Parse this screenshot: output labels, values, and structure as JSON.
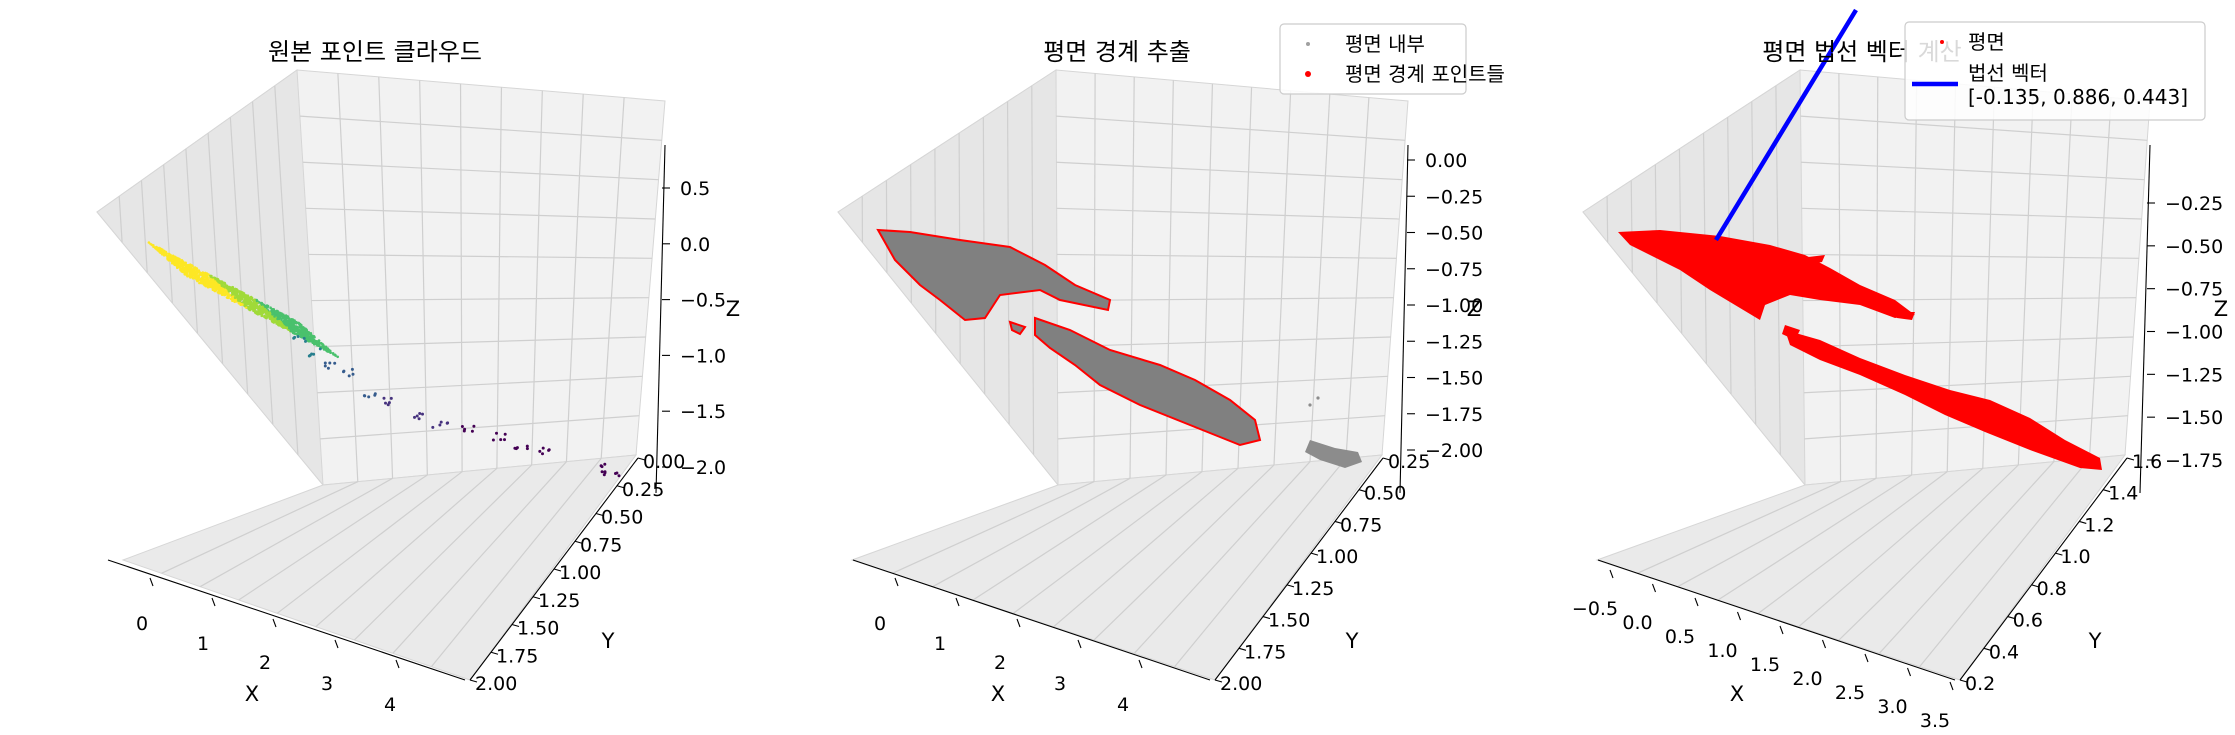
{
  "chart_data": [
    {
      "type": "scatter",
      "title": "원본 포인트 클라우드",
      "xlabel": "X",
      "ylabel": "Y",
      "zlabel": "Z",
      "xlim": [
        -0.3,
        4.8
      ],
      "ylim": [
        0.0,
        2.15
      ],
      "zlim": [
        -2.25,
        0.8
      ],
      "xticks": [
        "0",
        "1",
        "2",
        "3",
        "4"
      ],
      "yticks": [
        "0.00",
        "0.25",
        "0.50",
        "0.75",
        "1.00",
        "1.25",
        "1.50",
        "1.75",
        "2.00"
      ],
      "zticks": [
        "0.5",
        "0.0",
        "−0.5",
        "−1.0",
        "−1.5",
        "−2.0"
      ],
      "colormap": "viridis",
      "series": [
        {
          "points": [
            [
              0.05,
              1.12,
              0.0
            ],
            [
              0.2,
              1.0,
              -0.05
            ],
            [
              0.35,
              1.2,
              -0.1
            ],
            [
              0.5,
              1.05,
              -0.2
            ],
            [
              0.65,
              1.3,
              -0.25
            ],
            [
              0.8,
              1.1,
              -0.35
            ],
            [
              1.0,
              1.2,
              -0.45
            ],
            [
              1.25,
              1.15,
              -0.6
            ],
            [
              1.5,
              1.0,
              -0.8
            ],
            [
              1.8,
              1.1,
              -0.95
            ],
            [
              2.2,
              1.3,
              -1.15
            ],
            [
              2.7,
              1.4,
              -1.4
            ],
            [
              3.2,
              1.5,
              -1.7
            ],
            [
              3.6,
              1.6,
              -1.85
            ],
            [
              4.4,
              2.0,
              -2.05
            ]
          ]
        }
      ]
    },
    {
      "type": "scatter",
      "title": "평면 경계 추출",
      "xlabel": "X",
      "ylabel": "Y",
      "zlabel": "Z",
      "xlim": [
        -0.3,
        4.8
      ],
      "ylim": [
        0.2,
        2.15
      ],
      "zlim": [
        -2.25,
        0.05
      ],
      "xticks": [
        "0",
        "1",
        "2",
        "3",
        "4"
      ],
      "yticks": [
        "0.25",
        "0.50",
        "0.75",
        "1.00",
        "1.25",
        "1.50",
        "1.75",
        "2.00"
      ],
      "zticks": [
        "0.00",
        "−0.25",
        "−0.50",
        "−0.75",
        "−1.00",
        "−1.25",
        "−1.50",
        "−1.75",
        "−2.00"
      ],
      "legend": {
        "position": "upper right",
        "entries": [
          "평면 내부",
          "평면 경계 포인트들"
        ]
      },
      "colors": {
        "interior": "#808080",
        "boundary": "#ff0000"
      }
    },
    {
      "type": "scatter",
      "title": "평면 법선 벡터 계산",
      "xlabel": "X",
      "ylabel": "Y",
      "zlabel": "Z",
      "xlim": [
        -0.6,
        3.6
      ],
      "ylim": [
        0.15,
        1.75
      ],
      "zlim": [
        -1.9,
        -0.1
      ],
      "xticks": [
        "−0.5",
        "0.0",
        "0.5",
        "1.0",
        "1.5",
        "2.0",
        "2.5",
        "3.0",
        "3.5"
      ],
      "yticks": [
        "0.2",
        "0.4",
        "0.6",
        "0.8",
        "1.0",
        "1.2",
        "1.4",
        "1.6"
      ],
      "zticks": [
        "−0.25",
        "−0.50",
        "−0.75",
        "−1.00",
        "−1.25",
        "−1.50",
        "−1.75"
      ],
      "legend": {
        "position": "upper right",
        "entries": [
          "평면",
          "법선 벡터\n[-0.135, 0.886, 0.443]"
        ]
      },
      "normal_vector": [
        -0.135,
        0.886,
        0.443
      ],
      "colors": {
        "plane": "#ff0000",
        "normal": "#0000ff"
      }
    }
  ]
}
